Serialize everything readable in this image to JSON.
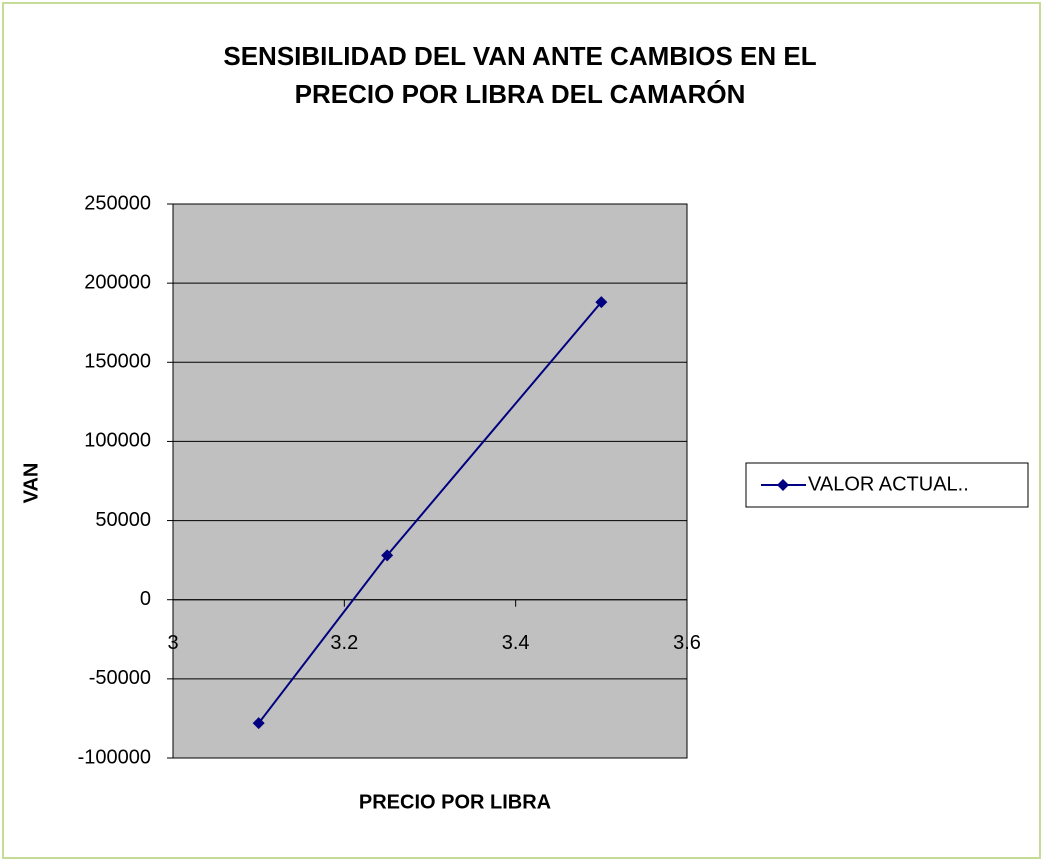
{
  "chart_data": {
    "type": "line",
    "title": [
      "SENSIBILIDAD DEL VAN ANTE CAMBIOS EN EL",
      "PRECIO POR LIBRA DEL CAMARÓN"
    ],
    "x_label": "PRECIO POR LIBRA",
    "y_label": "VAN",
    "x": [
      3.1,
      3.25,
      3.5
    ],
    "series": [
      {
        "name": "VALOR ACTUAL..",
        "color": "#000080",
        "values": [
          -78000,
          28000,
          188000
        ]
      }
    ],
    "xlim": [
      3,
      3.6
    ],
    "xticks": [
      3,
      3.2,
      3.4,
      3.6
    ],
    "ylim": [
      -100000,
      250000
    ],
    "yticks": [
      -100000,
      -50000,
      0,
      50000,
      100000,
      150000,
      200000,
      250000
    ],
    "grid": true,
    "legend": "right",
    "plot_background": "#c0c0c0"
  }
}
